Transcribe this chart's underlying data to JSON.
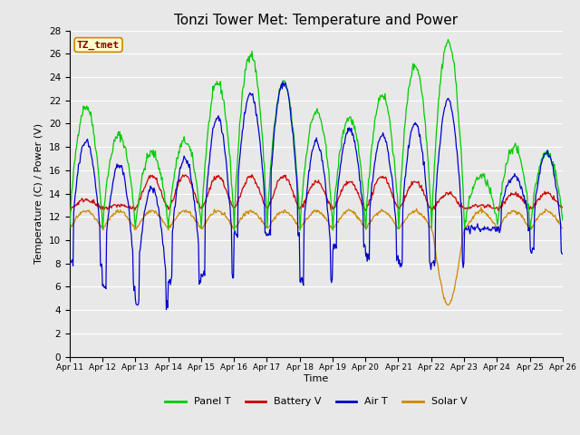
{
  "title": "Tonzi Tower Met: Temperature and Power",
  "xlabel": "Time",
  "ylabel": "Temperature (C) / Power (V)",
  "ylim": [
    0,
    28
  ],
  "yticks": [
    0,
    2,
    4,
    6,
    8,
    10,
    12,
    14,
    16,
    18,
    20,
    22,
    24,
    26,
    28
  ],
  "xtick_labels": [
    "Apr 11",
    "Apr 12",
    "Apr 13",
    "Apr 14",
    "Apr 15",
    "Apr 16",
    "Apr 17",
    "Apr 18",
    "Apr 19",
    "Apr 20",
    "Apr 21",
    "Apr 22",
    "Apr 23",
    "Apr 24",
    "Apr 25",
    "Apr 26"
  ],
  "series_colors": {
    "Panel T": "#00cc00",
    "Battery V": "#cc0000",
    "Air T": "#0000cc",
    "Solar V": "#cc8800"
  },
  "legend_label": "TZ_tmet",
  "legend_bg": "#ffffcc",
  "legend_border": "#cc8800",
  "bg_color": "#e8e8e8",
  "plot_bg": "#e8e8e8",
  "grid_color": "#ffffff",
  "title_fontsize": 11,
  "axis_fontsize": 8,
  "tick_fontsize": 7.5
}
